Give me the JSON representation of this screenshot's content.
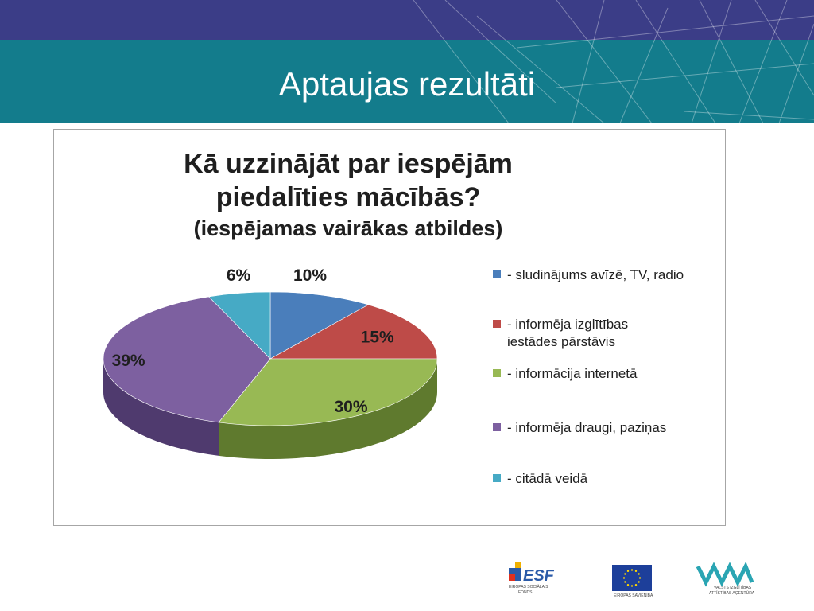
{
  "slide": {
    "title": "Aptaujas rezultāti"
  },
  "colors": {
    "header_top": "#3b3d87",
    "header_main": "#137c8c",
    "slice_1": "#4a7ebb",
    "slice_2": "#be4b48",
    "slice_3": "#98b954",
    "slice_4": "#7d60a0",
    "slice_5": "#46aac5"
  },
  "chart_data": {
    "type": "pie",
    "title_line_1": "Kā uzzinājāt par iespējām",
    "title_line_2": "piedalīties mācībās?",
    "subtitle": "(iespējamas vairākas atbildes)",
    "legend_position": "right",
    "slices": [
      {
        "label": "- sludinājums avīzē, TV, radio",
        "value": 10,
        "data_label": "10%",
        "color": "#4a7ebb",
        "shade": "#2f5587"
      },
      {
        "label": " - informēja izglītības iestādes pārstāvis",
        "value": 15,
        "data_label": "15%",
        "color": "#be4b48",
        "shade": "#86302e"
      },
      {
        "label": "- informācija internetā",
        "value": 30,
        "data_label": "30%",
        "color": "#98b954",
        "shade": "#5f7a2e"
      },
      {
        "label": "- informēja draugi, paziņas",
        "value": 39,
        "data_label": "39%",
        "color": "#7d60a0",
        "shade": "#4f3a6e"
      },
      {
        "label": " - citādā veidā",
        "value": 6,
        "data_label": "6%",
        "color": "#46aac5",
        "shade": "#2b7487"
      }
    ]
  },
  "footer": {
    "esf_logo": "ESF",
    "esf_caption_1": "EIROPAS SOCIĀLAIS",
    "esf_caption_2": "FONDS",
    "eu_caption": "EIROPAS SAVIENĪBA",
    "viaa_caption_1": "VALSTS IZGLĪTĪBAS",
    "viaa_caption_2": "ATTĪSTĪBAS AĢENTŪRA"
  }
}
